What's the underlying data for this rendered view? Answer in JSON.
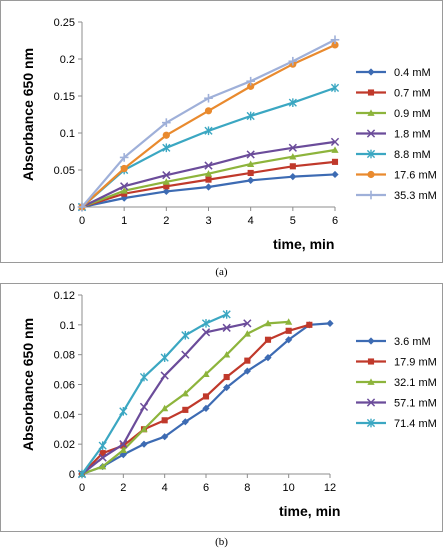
{
  "chart_data": [
    {
      "type": "line",
      "ylabel": "Absorbance 650 nm",
      "xlabel": "time, min",
      "ylim": [
        0,
        0.25
      ],
      "xlim": [
        0,
        6
      ],
      "yticks": [
        "0",
        "0.05",
        "0.1",
        "0.15",
        "0.2",
        "0.25"
      ],
      "xticks": [
        "0",
        "1",
        "2",
        "3",
        "4",
        "5",
        "6"
      ],
      "caption": "(a)",
      "legend_position": "right",
      "grid": false,
      "x": [
        0,
        1,
        2,
        3,
        4,
        5,
        6
      ],
      "series": [
        {
          "name": "0.4 mM",
          "color": "#3d6bb3",
          "marker": "diamond",
          "values": [
            0,
            0.012,
            0.021,
            0.027,
            0.036,
            0.041,
            0.044
          ]
        },
        {
          "name": "0.7 mM",
          "color": "#c0392b",
          "marker": "square",
          "values": [
            0,
            0.018,
            0.028,
            0.037,
            0.046,
            0.055,
            0.061
          ]
        },
        {
          "name": "0.9 mM",
          "color": "#8db43c",
          "marker": "triangle",
          "values": [
            0,
            0.022,
            0.034,
            0.045,
            0.058,
            0.068,
            0.077
          ]
        },
        {
          "name": "1.8 mM",
          "color": "#6b4c9a",
          "marker": "x",
          "values": [
            0,
            0.028,
            0.043,
            0.056,
            0.071,
            0.08,
            0.088
          ]
        },
        {
          "name": "8.8 mM",
          "color": "#3ba7c2",
          "marker": "star",
          "values": [
            0,
            0.05,
            0.08,
            0.103,
            0.123,
            0.141,
            0.161
          ]
        },
        {
          "name": "17.6 mM",
          "color": "#e98a2e",
          "marker": "circle",
          "values": [
            0,
            0.052,
            0.097,
            0.13,
            0.163,
            0.193,
            0.219
          ]
        },
        {
          "name": "35.3 mM",
          "color": "#9fb0d9",
          "marker": "plus",
          "values": [
            0,
            0.067,
            0.114,
            0.147,
            0.17,
            0.197,
            0.226
          ]
        }
      ]
    },
    {
      "type": "line",
      "ylabel": "Absorbance 650 nm",
      "xlabel": "time, min",
      "ylim": [
        0,
        0.12
      ],
      "xlim": [
        0,
        12
      ],
      "yticks": [
        "0",
        "0.02",
        "0.04",
        "0.06",
        "0.08",
        "0.1",
        "0.12"
      ],
      "xticks": [
        "0",
        "2",
        "4",
        "6",
        "8",
        "10",
        "12"
      ],
      "caption": "(b)",
      "legend_position": "right",
      "grid": false,
      "series": [
        {
          "name": "3.6 mM",
          "color": "#3d6bb3",
          "marker": "diamond",
          "x": [
            0,
            1,
            2,
            3,
            4,
            5,
            6,
            7,
            8,
            9,
            10,
            11,
            12
          ],
          "values": [
            0,
            0.005,
            0.013,
            0.02,
            0.025,
            0.035,
            0.044,
            0.058,
            0.069,
            0.078,
            0.09,
            0.1,
            0.101
          ]
        },
        {
          "name": "17.9 mM",
          "color": "#c0392b",
          "marker": "square",
          "x": [
            0,
            1,
            2,
            3,
            4,
            5,
            6,
            7,
            8,
            9,
            10,
            11
          ],
          "values": [
            0,
            0.014,
            0.019,
            0.03,
            0.036,
            0.043,
            0.052,
            0.065,
            0.076,
            0.09,
            0.096,
            0.1
          ]
        },
        {
          "name": "32.1 mM",
          "color": "#8db43c",
          "marker": "triangle",
          "x": [
            0,
            1,
            2,
            3,
            4,
            5,
            6,
            7,
            8,
            9,
            10
          ],
          "values": [
            0,
            0.005,
            0.016,
            0.03,
            0.044,
            0.054,
            0.067,
            0.08,
            0.094,
            0.101,
            0.102
          ]
        },
        {
          "name": "57.1 mM",
          "color": "#6b4c9a",
          "marker": "x",
          "x": [
            0,
            1,
            2,
            3,
            4,
            5,
            6,
            7,
            8
          ],
          "values": [
            0,
            0.011,
            0.02,
            0.045,
            0.066,
            0.08,
            0.095,
            0.098,
            0.101
          ]
        },
        {
          "name": "71.4 mM",
          "color": "#3ba7c2",
          "marker": "star",
          "x": [
            0,
            1,
            2,
            3,
            4,
            5,
            6,
            7
          ],
          "values": [
            0,
            0.019,
            0.042,
            0.065,
            0.078,
            0.093,
            0.101,
            0.107
          ]
        }
      ]
    }
  ]
}
